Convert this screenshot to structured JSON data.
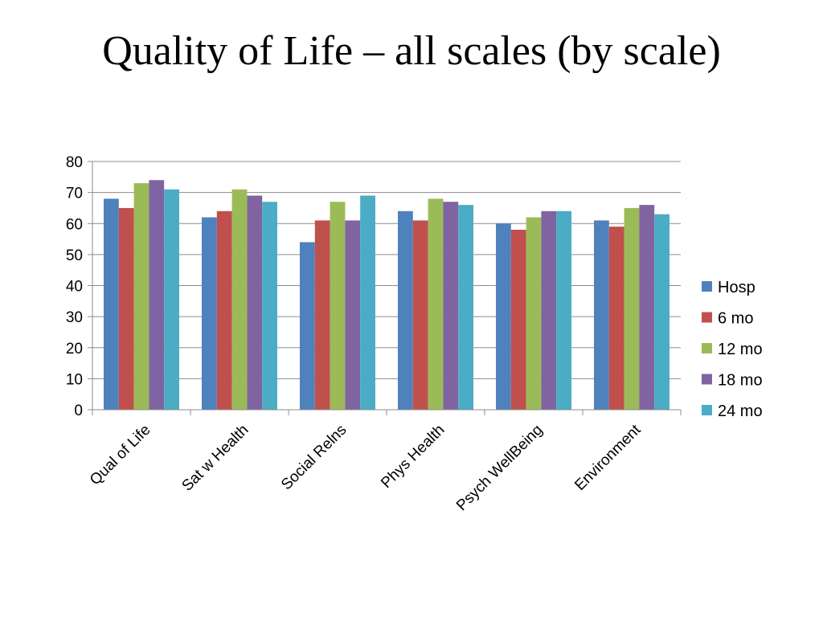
{
  "slide": {
    "title": "Quality of Life – all scales (by scale)"
  },
  "chart_data": {
    "type": "bar",
    "title": "Quality of Life – all scales (by scale)",
    "xlabel": "",
    "ylabel": "",
    "ylim": [
      0,
      80
    ],
    "yticks": [
      "0",
      "10",
      "20",
      "30",
      "40",
      "50",
      "60",
      "70",
      "80"
    ],
    "grid": true,
    "legend_position": "right",
    "categories": [
      "Qual of Life",
      "Sat w Health",
      "Social Relns",
      "Phys Health",
      "Psych WellBeing",
      "Environment"
    ],
    "series": [
      {
        "name": "Hosp",
        "color": "#4F81BD",
        "values": [
          68,
          62,
          54,
          64,
          60,
          61
        ]
      },
      {
        "name": "6 mo",
        "color": "#C0504D",
        "values": [
          65,
          64,
          61,
          61,
          58,
          59
        ]
      },
      {
        "name": "12 mo",
        "color": "#9BBB59",
        "values": [
          73,
          71,
          67,
          68,
          62,
          65
        ]
      },
      {
        "name": "18 mo",
        "color": "#8064A2",
        "values": [
          74,
          69,
          61,
          67,
          64,
          66
        ]
      },
      {
        "name": "24 mo",
        "color": "#4BACC6",
        "values": [
          71,
          67,
          69,
          66,
          64,
          63
        ]
      }
    ]
  }
}
